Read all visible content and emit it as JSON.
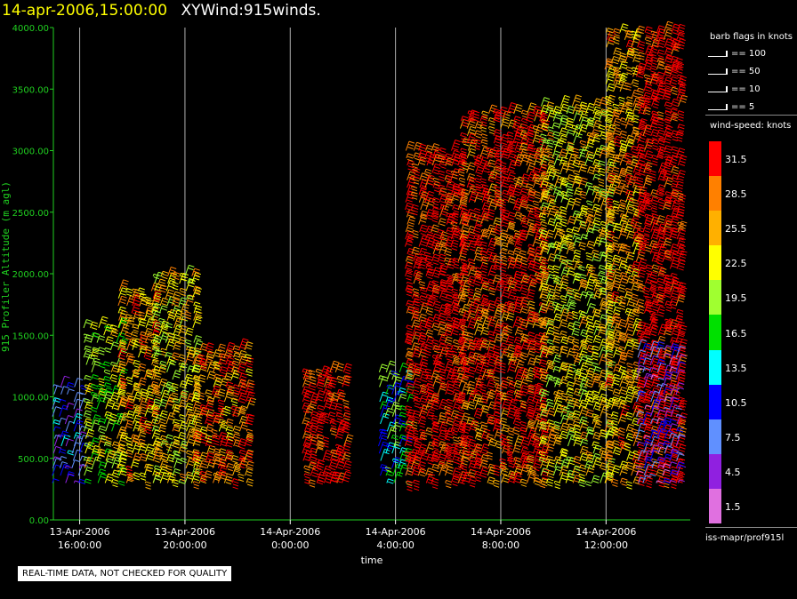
{
  "title": {
    "date": "14-apr-2006,15:00:00",
    "name": "XYWind:915winds."
  },
  "notice": "REAL-TIME DATA, NOT CHECKED FOR QUALITY",
  "footer": "iss-mapr/prof915l",
  "legend": {
    "barb_header": "barb flags in knots",
    "barbs": [
      {
        "label": "== 100"
      },
      {
        "label": "== 50"
      },
      {
        "label": "== 10"
      },
      {
        "label": "== 5"
      }
    ],
    "speed_header": "wind-speed: knots",
    "speed_levels": [
      {
        "label": "31.5",
        "color": "#ff0000"
      },
      {
        "label": "28.5",
        "color": "#ff8000"
      },
      {
        "label": "25.5",
        "color": "#ffb000"
      },
      {
        "label": "22.5",
        "color": "#ffff00"
      },
      {
        "label": "19.5",
        "color": "#a0ff30"
      },
      {
        "label": "16.5",
        "color": "#00e000"
      },
      {
        "label": "13.5",
        "color": "#00ffff"
      },
      {
        "label": "10.5",
        "color": "#0000ff"
      },
      {
        "label": "7.5",
        "color": "#6090ff"
      },
      {
        "label": "4.5",
        "color": "#9020e0"
      },
      {
        "label": "1.5",
        "color": "#e070e0"
      }
    ]
  },
  "chart_data": {
    "type": "scatter",
    "title": "XYWind:915winds.",
    "xlabel": "time",
    "ylabel": "915 Profiler Altitude (m agl)",
    "ylim": [
      0,
      4000
    ],
    "yticks": [
      "0.00",
      "500.00",
      "1000.00",
      "1500.00",
      "2000.00",
      "2500.00",
      "3000.00",
      "3500.00",
      "4000.00"
    ],
    "xticks": [
      {
        "line1": "13-Apr-2006",
        "line2": "16:00:00",
        "hour": 16
      },
      {
        "line1": "13-Apr-2006",
        "line2": "20:00:00",
        "hour": 20
      },
      {
        "line1": "14-Apr-2006",
        "line2": "0:00:00",
        "hour": 24
      },
      {
        "line1": "14-Apr-2006",
        "line2": "4:00:00",
        "hour": 28
      },
      {
        "line1": "14-Apr-2006",
        "line2": "8:00:00",
        "hour": 32
      },
      {
        "line1": "14-Apr-2006",
        "line2": "12:00:00",
        "hour": 36
      }
    ],
    "xrange_hours": [
      15,
      39.2
    ],
    "grid": "vertical",
    "series": [
      {
        "hour_start": 15.0,
        "hour_end": 16.0,
        "alt_top": 1100,
        "speed": 9
      },
      {
        "hour_start": 16.2,
        "hour_end": 17.5,
        "alt_top": 1600,
        "speed": 20
      },
      {
        "hour_start": 17.5,
        "hour_end": 18.8,
        "alt_top": 1900,
        "speed": 26
      },
      {
        "hour_start": 18.8,
        "hour_end": 20.3,
        "alt_top": 2000,
        "speed": 23
      },
      {
        "hour_start": 20.3,
        "hour_end": 22.5,
        "alt_top": 1400,
        "speed": 28
      },
      {
        "hour_start": 24.5,
        "hour_end": 26.0,
        "alt_top": 1200,
        "speed": 32
      },
      {
        "hour_start": 27.4,
        "hour_end": 28.4,
        "alt_top": 1200,
        "speed": 15
      },
      {
        "hour_start": 28.4,
        "hour_end": 30.5,
        "alt_top": 3000,
        "speed": 32
      },
      {
        "hour_start": 30.5,
        "hour_end": 33.5,
        "alt_top": 3300,
        "speed": 30
      },
      {
        "hour_start": 33.5,
        "hour_end": 36.0,
        "alt_top": 3400,
        "speed": 23
      },
      {
        "hour_start": 36.0,
        "hour_end": 37.2,
        "alt_top": 4000,
        "speed": 26
      },
      {
        "hour_start": 37.2,
        "hour_end": 38.8,
        "alt_top": 4000,
        "speed": 33
      },
      {
        "hour_start": 37.2,
        "hour_end": 38.8,
        "alt_top": 1400,
        "speed": 7
      }
    ]
  }
}
